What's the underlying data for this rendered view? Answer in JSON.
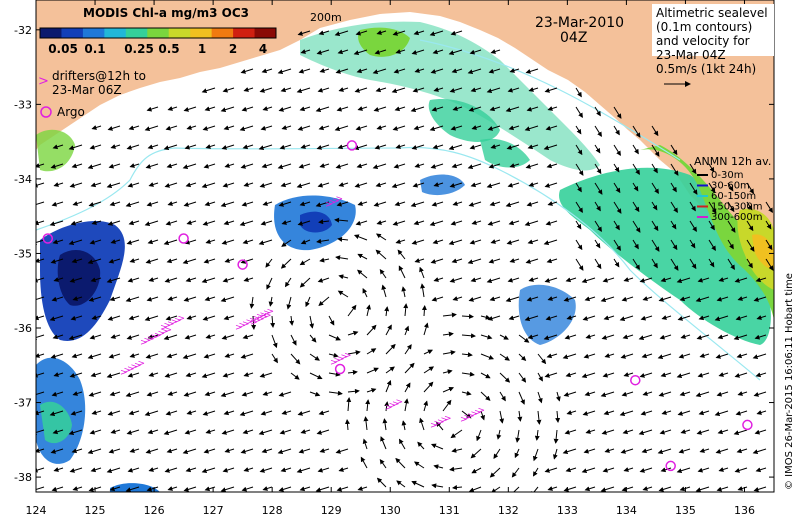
{
  "colorbar": {
    "title": "MODIS Chl-a mg/m3 OC3",
    "ticks": [
      "0.05",
      "0.1",
      "0.25",
      "0.5",
      "1",
      "2",
      "4"
    ],
    "colors": [
      "#0b1a6e",
      "#123fb8",
      "#1f78d8",
      "#22b7d8",
      "#35d09a",
      "#7ad63e",
      "#c8d82a",
      "#f0c020",
      "#f07a10",
      "#d02010",
      "#8a0a05"
    ]
  },
  "date": "23-Mar-2010",
  "time": "04Z",
  "isobath_label": "200m",
  "drifters_note": [
    "drifters@12h to",
    "23-Mar 06Z"
  ],
  "drifters_symbol": ">",
  "argo_label": "Argo",
  "altimetry_note": [
    "Altimetric sealevel",
    "(0.1m contours)",
    "and velocity for",
    "23-Mar 04Z",
    "0.5m/s (1kt 24h)"
  ],
  "anmn_legend": {
    "title": "ANMN 12h av.",
    "items": [
      {
        "label": "0-30m",
        "color": "#000000"
      },
      {
        "label": "30-60m",
        "color": "#1010d0"
      },
      {
        "label": "60-150m",
        "color": "#20c8d0"
      },
      {
        "label": "150-300m",
        "color": "#d02020"
      },
      {
        "label": "300-600m",
        "color": "#d020d0"
      }
    ]
  },
  "credit": "© IMOS 26-Mar-2015 16:06:11 Hobart time",
  "map_data": {
    "lon_ticks": [
      "124",
      "125",
      "126",
      "127",
      "128",
      "129",
      "130",
      "131",
      "132",
      "133",
      "134",
      "135",
      "136"
    ],
    "lat_ticks": [
      "-32",
      "-33",
      "-34",
      "-35",
      "-36",
      "-37",
      "-38"
    ],
    "lon_range": [
      124,
      136.5
    ],
    "lat_range": [
      -38.2,
      -31.6
    ],
    "argo_floats": [
      [
        124.2,
        -34.8
      ],
      [
        126.5,
        -34.8
      ],
      [
        127.5,
        -35.15
      ],
      [
        129.35,
        -33.55
      ],
      [
        129.15,
        -36.55
      ],
      [
        134.15,
        -36.7
      ],
      [
        136.05,
        -37.3
      ],
      [
        134.75,
        -37.85
      ]
    ],
    "colors": {
      "land": "#f4c19a",
      "ocean": "#ffffff",
      "drifter": "#e020e0",
      "argo": "#e020e0",
      "contour": "#9ae8f0"
    }
  }
}
